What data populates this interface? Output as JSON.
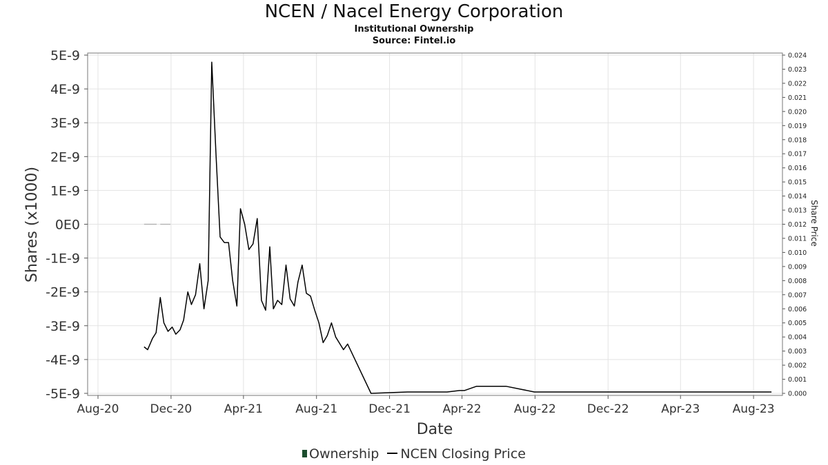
{
  "header": {
    "title": "NCEN / Nacel Energy Corporation",
    "subtitle": "Institutional Ownership",
    "source": "Source: Fintel.io"
  },
  "legend": {
    "items": [
      {
        "label": "Ownership",
        "color": "#1b4d2e"
      },
      {
        "label": "NCEN Closing Price",
        "color": "#000000"
      }
    ]
  },
  "chart_data": {
    "type": "line",
    "title": "NCEN / Nacel Energy Corporation",
    "xlabel": "Date",
    "ylabel": "Shares (x1000)",
    "y2label": "Share Price",
    "x_ticks": [
      "Aug-20",
      "Dec-20",
      "Apr-21",
      "Aug-21",
      "Dec-21",
      "Apr-22",
      "Aug-22",
      "Dec-22",
      "Apr-23",
      "Aug-23"
    ],
    "x_tick_dates": [
      "2020-08-01",
      "2020-12-01",
      "2021-04-01",
      "2021-08-01",
      "2021-12-01",
      "2022-04-01",
      "2022-08-01",
      "2022-12-01",
      "2023-04-01",
      "2023-08-01"
    ],
    "xlim": [
      "2020-07-17",
      "2023-09-16"
    ],
    "y_ticks": [
      "5E-9",
      "4E-9",
      "3E-9",
      "2E-9",
      "1E-9",
      "0E0",
      "-1E-9",
      "-2E-9",
      "-3E-9",
      "-4E-9",
      "-5E-9"
    ],
    "ylim": [
      -5e-09,
      5e-09
    ],
    "y2_ticks": [
      "0.024",
      "0.023",
      "0.022",
      "0.021",
      "0.020",
      "0.019",
      "0.018",
      "0.017",
      "0.016",
      "0.015",
      "0.014",
      "0.013",
      "0.012",
      "0.011",
      "0.010",
      "0.009",
      "0.008",
      "0.007",
      "0.006",
      "0.005",
      "0.004",
      "0.003",
      "0.002",
      "0.001",
      "0.000"
    ],
    "y2lim": [
      0,
      0.024
    ],
    "grid": true,
    "legend_position": "bottom",
    "series": [
      {
        "name": "Ownership",
        "axis": "left",
        "color": "#aaaaaa",
        "segments": [
          [
            [
              "2020-10-17",
              0
            ],
            [
              "2020-11-07",
              0
            ]
          ],
          [
            [
              "2020-11-13",
              0
            ],
            [
              "2020-11-30",
              0
            ]
          ]
        ]
      },
      {
        "name": "NCEN Closing Price",
        "axis": "right",
        "color": "#000000",
        "points": [
          [
            "2020-10-17",
            0.0033
          ],
          [
            "2020-10-23",
            0.0031
          ],
          [
            "2020-10-31",
            0.0039
          ],
          [
            "2020-11-06",
            0.0043
          ],
          [
            "2020-11-13",
            0.0068
          ],
          [
            "2020-11-19",
            0.005
          ],
          [
            "2020-11-26",
            0.0044
          ],
          [
            "2020-12-03",
            0.0047
          ],
          [
            "2020-12-09",
            0.0042
          ],
          [
            "2020-12-16",
            0.0045
          ],
          [
            "2020-12-22",
            0.0052
          ],
          [
            "2020-12-29",
            0.0072
          ],
          [
            "2021-01-04",
            0.0063
          ],
          [
            "2021-01-11",
            0.007
          ],
          [
            "2021-01-18",
            0.0092
          ],
          [
            "2021-01-25",
            0.006
          ],
          [
            "2021-02-01",
            0.008
          ],
          [
            "2021-02-07",
            0.0235
          ],
          [
            "2021-02-14",
            0.0171
          ],
          [
            "2021-02-21",
            0.0111
          ],
          [
            "2021-02-28",
            0.0107
          ],
          [
            "2021-03-07",
            0.0107
          ],
          [
            "2021-03-14",
            0.008
          ],
          [
            "2021-03-21",
            0.0062
          ],
          [
            "2021-03-27",
            0.0131
          ],
          [
            "2021-04-03",
            0.012
          ],
          [
            "2021-04-10",
            0.0102
          ],
          [
            "2021-04-17",
            0.0106
          ],
          [
            "2021-04-24",
            0.0124
          ],
          [
            "2021-05-01",
            0.0066
          ],
          [
            "2021-05-08",
            0.0059
          ],
          [
            "2021-05-15",
            0.0104
          ],
          [
            "2021-05-21",
            0.006
          ],
          [
            "2021-05-28",
            0.0066
          ],
          [
            "2021-06-04",
            0.0063
          ],
          [
            "2021-06-11",
            0.0091
          ],
          [
            "2021-06-18",
            0.0067
          ],
          [
            "2021-06-25",
            0.0062
          ],
          [
            "2021-07-01",
            0.0079
          ],
          [
            "2021-07-08",
            0.0091
          ],
          [
            "2021-07-15",
            0.0071
          ],
          [
            "2021-07-22",
            0.0069
          ],
          [
            "2021-07-29",
            0.0059
          ],
          [
            "2021-08-05",
            0.005
          ],
          [
            "2021-08-12",
            0.0036
          ],
          [
            "2021-08-19",
            0.0041
          ],
          [
            "2021-08-26",
            0.005
          ],
          [
            "2021-09-02",
            0.004
          ],
          [
            "2021-09-15",
            0.0031
          ],
          [
            "2021-09-22",
            0.0035
          ],
          [
            "2021-10-31",
            0.0
          ],
          [
            "2021-12-31",
            0.0001
          ],
          [
            "2022-02-07",
            0.0001
          ],
          [
            "2022-03-07",
            0.0001
          ],
          [
            "2022-03-28",
            0.0002
          ],
          [
            "2022-04-05",
            0.0002
          ],
          [
            "2022-04-25",
            0.0005
          ],
          [
            "2022-06-14",
            0.0005
          ],
          [
            "2022-07-31",
            0.0001
          ],
          [
            "2023-08-31",
            0.0001
          ]
        ]
      }
    ]
  }
}
